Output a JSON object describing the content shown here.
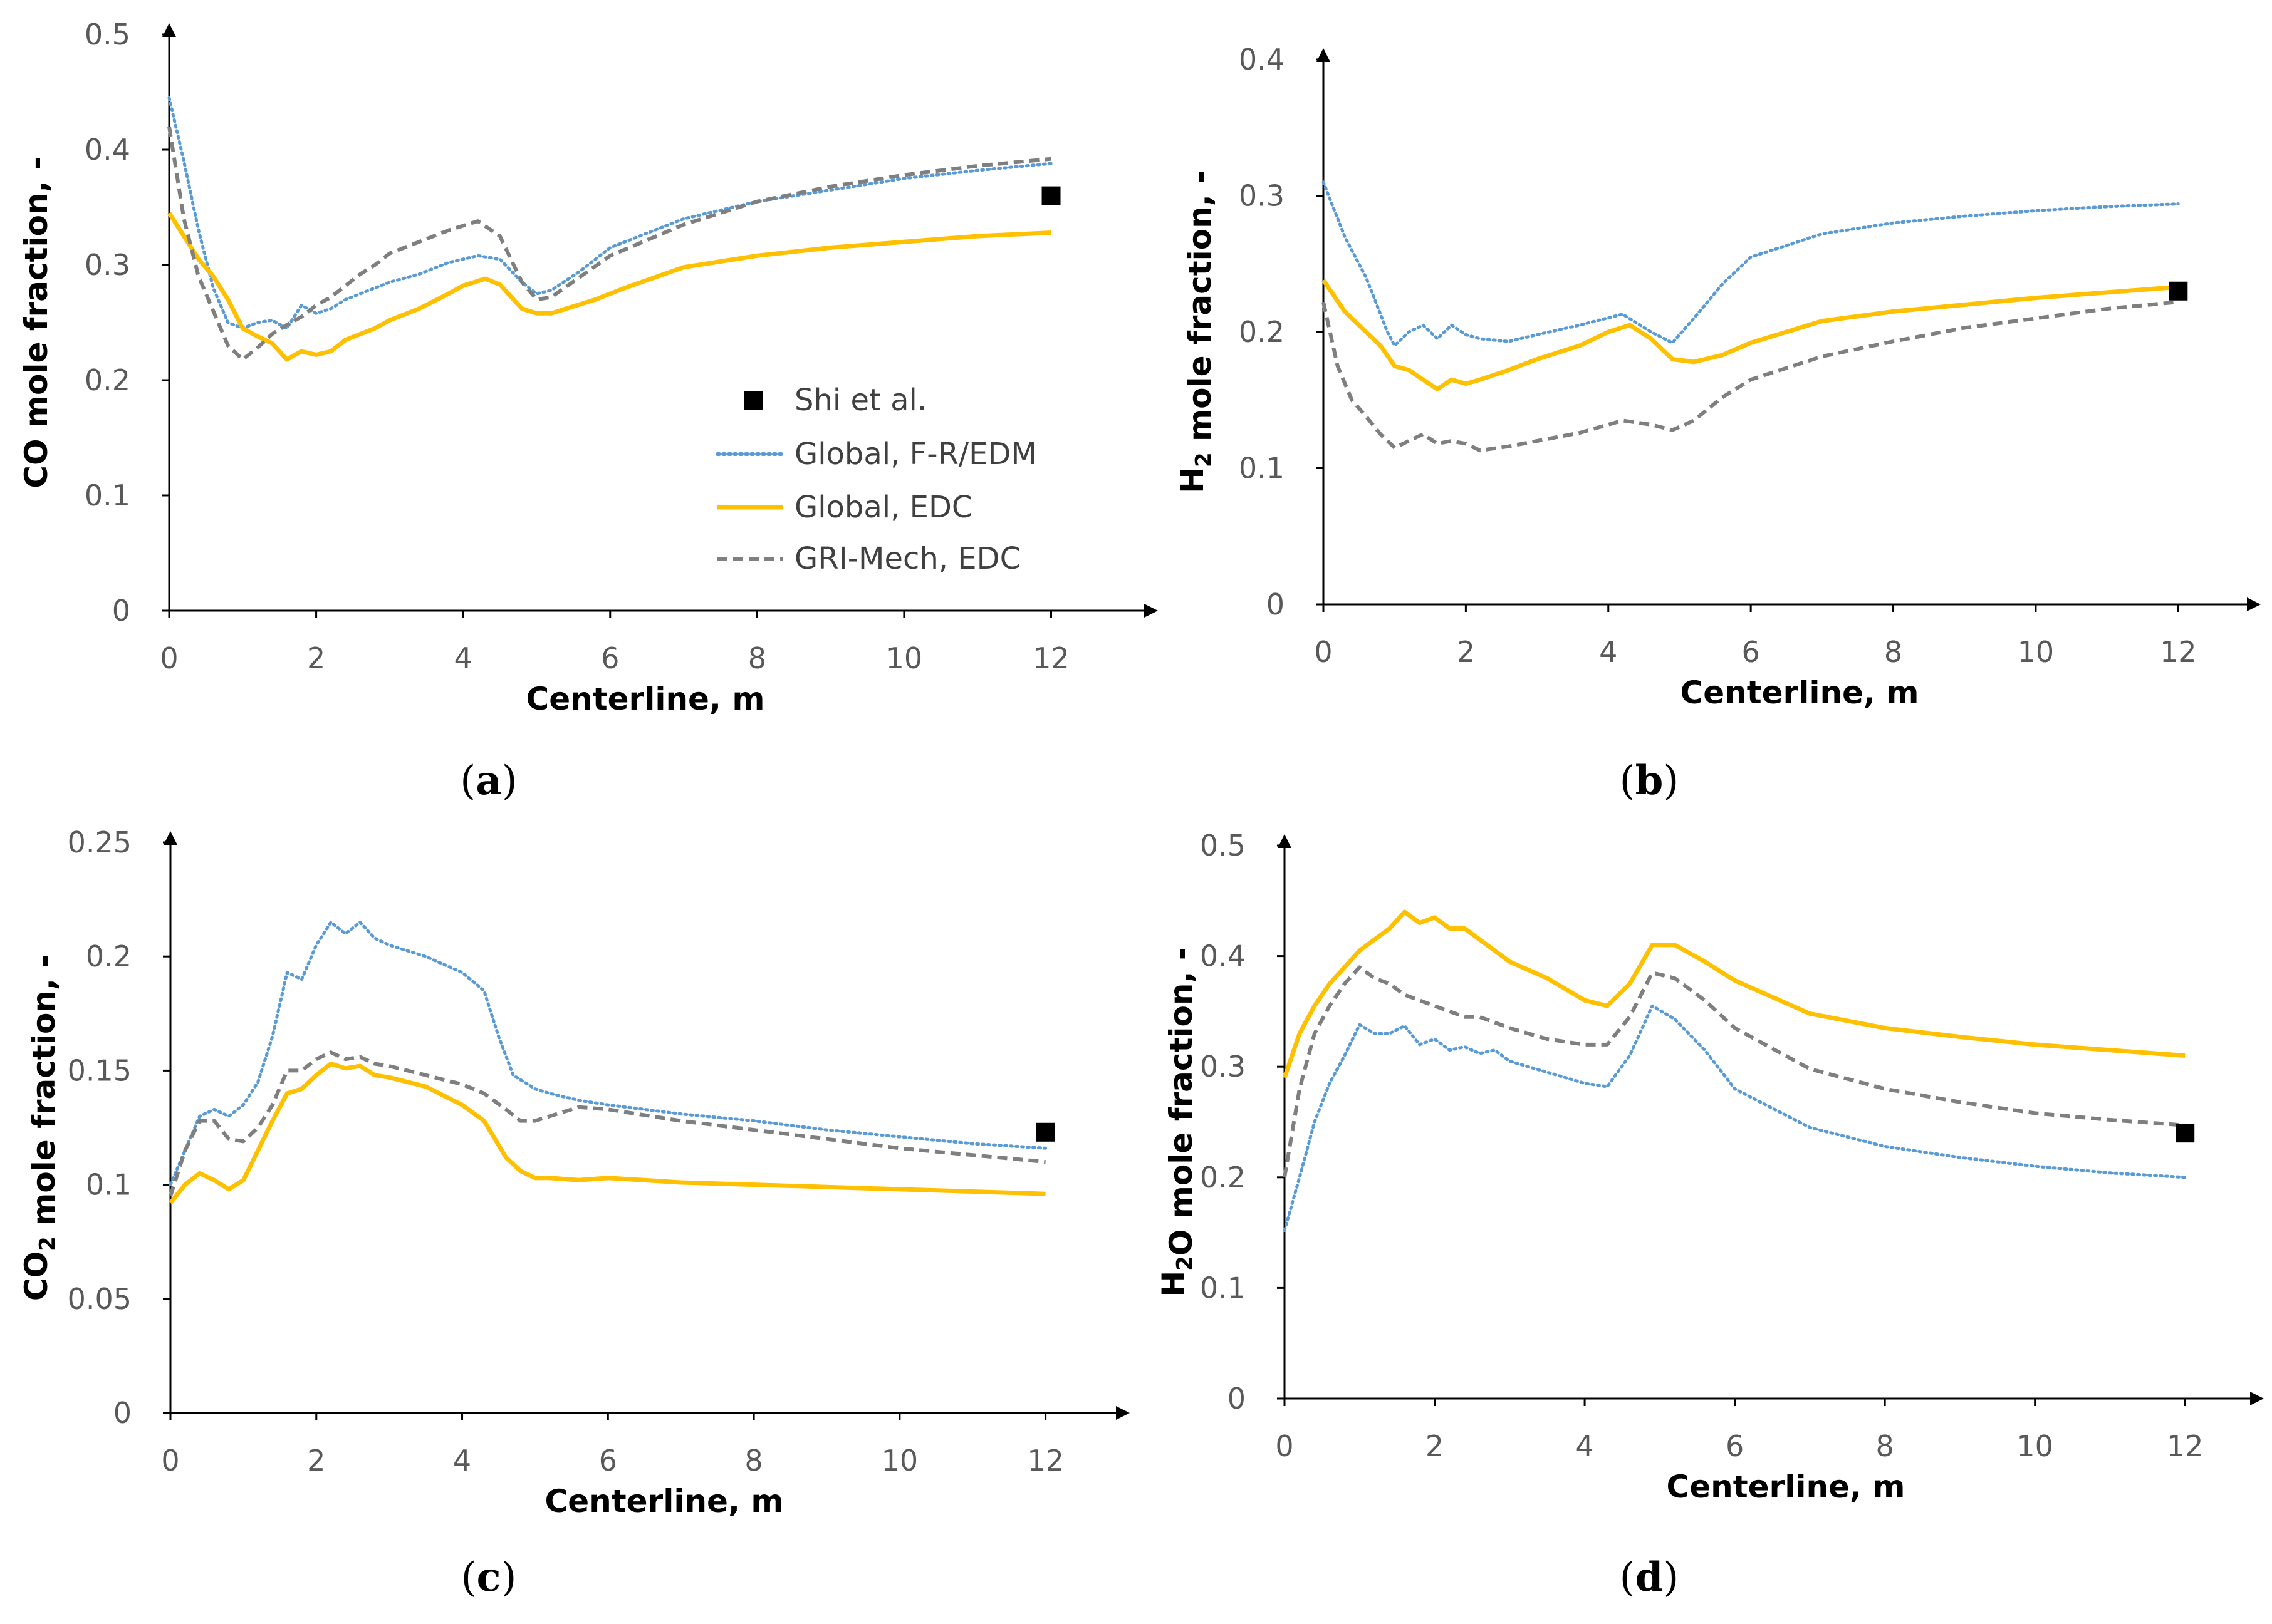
{
  "colors": {
    "ref": "#000000",
    "frEdm": "#5B9BD5",
    "globalEdc": "#FFC000",
    "griEdc": "#7F7F7F",
    "axis": "#000000",
    "tickText": "#595959"
  },
  "legend": {
    "items": [
      {
        "label": "Shi et al.",
        "series": "ref"
      },
      {
        "label": "Global, F-R/EDM",
        "series": "frEdm"
      },
      {
        "label": "Global, EDC",
        "series": "globalEdc"
      },
      {
        "label": "GRI-Mech, EDC",
        "series": "griEdc"
      }
    ]
  },
  "chart_data": [
    {
      "id": "a",
      "type": "line",
      "tag": "a",
      "xlabel": "Centerline, m",
      "ylabel": "CO mole fraction, -",
      "ylabel_parts": [
        {
          "t": "CO mole fraction, -"
        }
      ],
      "xlim": [
        0,
        13.3
      ],
      "ylim": [
        0,
        0.5
      ],
      "xticks": [
        0,
        2,
        4,
        6,
        8,
        10,
        12
      ],
      "yticks": [
        0,
        0.1,
        0.2,
        0.3,
        0.4,
        0.5
      ],
      "yticklabels": [
        "0",
        "0.1",
        "0.2",
        "0.3",
        "0.4",
        "0.5"
      ],
      "legend": "center-right",
      "series": [
        {
          "key": "frEdm",
          "name": "Global, F-R/EDM",
          "x": [
            0,
            0.2,
            0.4,
            0.6,
            0.8,
            1.0,
            1.2,
            1.4,
            1.6,
            1.8,
            2.0,
            2.2,
            2.4,
            2.6,
            2.8,
            3.0,
            3.4,
            3.8,
            4.2,
            4.5,
            4.8,
            5.0,
            5.2,
            5.6,
            6.0,
            7.0,
            8.0,
            9.0,
            10.0,
            11.0,
            12.0
          ],
          "y": [
            0.445,
            0.39,
            0.33,
            0.28,
            0.25,
            0.245,
            0.25,
            0.252,
            0.245,
            0.265,
            0.258,
            0.262,
            0.27,
            0.275,
            0.28,
            0.285,
            0.292,
            0.302,
            0.308,
            0.305,
            0.285,
            0.275,
            0.278,
            0.295,
            0.315,
            0.34,
            0.355,
            0.365,
            0.375,
            0.382,
            0.388
          ]
        },
        {
          "key": "globalEdc",
          "name": "Global, EDC",
          "x": [
            0,
            0.2,
            0.4,
            0.6,
            0.8,
            1.0,
            1.2,
            1.4,
            1.6,
            1.8,
            2.0,
            2.2,
            2.4,
            2.6,
            2.8,
            3.0,
            3.4,
            3.8,
            4.0,
            4.3,
            4.5,
            4.8,
            5.0,
            5.2,
            5.4,
            5.8,
            6.2,
            7.0,
            8.0,
            9.0,
            10.0,
            11.0,
            12.0
          ],
          "y": [
            0.345,
            0.325,
            0.305,
            0.29,
            0.27,
            0.245,
            0.238,
            0.232,
            0.218,
            0.225,
            0.222,
            0.225,
            0.235,
            0.24,
            0.245,
            0.252,
            0.262,
            0.275,
            0.282,
            0.288,
            0.283,
            0.262,
            0.258,
            0.258,
            0.262,
            0.27,
            0.28,
            0.298,
            0.308,
            0.315,
            0.32,
            0.325,
            0.328
          ]
        },
        {
          "key": "griEdc",
          "name": "GRI-Mech, EDC",
          "x": [
            0,
            0.2,
            0.4,
            0.6,
            0.8,
            1.0,
            1.2,
            1.4,
            1.6,
            1.8,
            2.0,
            2.2,
            2.4,
            2.6,
            2.8,
            3.0,
            3.4,
            3.8,
            4.2,
            4.5,
            4.8,
            5.0,
            5.2,
            5.6,
            6.0,
            7.0,
            8.0,
            9.0,
            10.0,
            11.0,
            12.0
          ],
          "y": [
            0.42,
            0.34,
            0.29,
            0.26,
            0.23,
            0.218,
            0.228,
            0.24,
            0.248,
            0.255,
            0.265,
            0.272,
            0.282,
            0.292,
            0.3,
            0.31,
            0.32,
            0.33,
            0.338,
            0.325,
            0.285,
            0.27,
            0.272,
            0.29,
            0.308,
            0.335,
            0.355,
            0.368,
            0.378,
            0.386,
            0.392
          ]
        },
        {
          "key": "ref",
          "name": "Shi et al.",
          "x": [
            12.0
          ],
          "y": [
            0.36
          ]
        }
      ]
    },
    {
      "id": "b",
      "type": "line",
      "tag": "b",
      "xlabel": "Centerline, m",
      "ylabel": "H2 mole fraction, -",
      "ylabel_parts": [
        {
          "t": "H"
        },
        {
          "t": "2",
          "sub": true
        },
        {
          "t": " mole fraction, -"
        }
      ],
      "xlim": [
        0,
        13.0
      ],
      "ylim": [
        0,
        0.4
      ],
      "xticks": [
        0,
        2,
        4,
        6,
        8,
        10,
        12
      ],
      "yticks": [
        0,
        0.1,
        0.2,
        0.3,
        0.4
      ],
      "yticklabels": [
        "0",
        "0.1",
        "0.2",
        "0.3",
        "0.4"
      ],
      "series": [
        {
          "key": "frEdm",
          "name": "Global, F-R/EDM",
          "x": [
            0,
            0.3,
            0.6,
            0.9,
            1.0,
            1.2,
            1.4,
            1.6,
            1.8,
            2.0,
            2.2,
            2.6,
            3.0,
            3.6,
            4.2,
            4.6,
            4.9,
            5.2,
            5.6,
            6.0,
            7.0,
            8.0,
            9.0,
            10.0,
            11.0,
            12.0
          ],
          "y": [
            0.31,
            0.27,
            0.24,
            0.2,
            0.19,
            0.2,
            0.205,
            0.195,
            0.205,
            0.198,
            0.195,
            0.193,
            0.198,
            0.205,
            0.213,
            0.2,
            0.192,
            0.21,
            0.235,
            0.255,
            0.272,
            0.28,
            0.285,
            0.289,
            0.292,
            0.294
          ]
        },
        {
          "key": "globalEdc",
          "name": "Global, EDC",
          "x": [
            0,
            0.3,
            0.6,
            0.8,
            1.0,
            1.2,
            1.4,
            1.6,
            1.8,
            2.0,
            2.2,
            2.6,
            3.0,
            3.6,
            4.0,
            4.3,
            4.6,
            4.9,
            5.2,
            5.6,
            6.0,
            7.0,
            8.0,
            9.0,
            10.0,
            11.0,
            12.0
          ],
          "y": [
            0.238,
            0.215,
            0.2,
            0.19,
            0.175,
            0.172,
            0.165,
            0.158,
            0.165,
            0.162,
            0.165,
            0.172,
            0.18,
            0.19,
            0.2,
            0.205,
            0.195,
            0.18,
            0.178,
            0.183,
            0.192,
            0.208,
            0.215,
            0.22,
            0.225,
            0.229,
            0.233
          ]
        },
        {
          "key": "griEdc",
          "name": "GRI-Mech, EDC",
          "x": [
            0,
            0.2,
            0.4,
            0.6,
            0.8,
            1.0,
            1.2,
            1.4,
            1.6,
            1.8,
            2.0,
            2.2,
            2.6,
            3.0,
            3.6,
            4.2,
            4.6,
            4.9,
            5.2,
            5.6,
            6.0,
            7.0,
            8.0,
            9.0,
            10.0,
            11.0,
            12.0
          ],
          "y": [
            0.222,
            0.175,
            0.15,
            0.138,
            0.125,
            0.115,
            0.12,
            0.125,
            0.118,
            0.12,
            0.118,
            0.113,
            0.116,
            0.12,
            0.126,
            0.135,
            0.132,
            0.128,
            0.135,
            0.152,
            0.165,
            0.182,
            0.193,
            0.203,
            0.21,
            0.217,
            0.222
          ]
        },
        {
          "key": "ref",
          "name": "Shi et al.",
          "x": [
            12.0
          ],
          "y": [
            0.23
          ]
        }
      ]
    },
    {
      "id": "c",
      "type": "line",
      "tag": "c",
      "xlabel": "Centerline, m",
      "ylabel": "CO2 mole fraction, -",
      "ylabel_parts": [
        {
          "t": "CO"
        },
        {
          "t": "2",
          "sub": true
        },
        {
          "t": " mole fraction, -"
        }
      ],
      "xlim": [
        0,
        13.0
      ],
      "ylim": [
        0,
        0.25
      ],
      "xticks": [
        0,
        2,
        4,
        6,
        8,
        10,
        12
      ],
      "yticks": [
        0,
        0.05,
        0.1,
        0.15,
        0.2,
        0.25
      ],
      "yticklabels": [
        "0",
        "0.05",
        "0.1",
        "0.15",
        "0.2",
        "0.25"
      ],
      "series": [
        {
          "key": "frEdm",
          "name": "Global, F-R/EDM",
          "x": [
            0,
            0.2,
            0.4,
            0.6,
            0.8,
            1.0,
            1.2,
            1.4,
            1.6,
            1.8,
            2.0,
            2.2,
            2.4,
            2.6,
            2.8,
            3.0,
            3.5,
            4.0,
            4.3,
            4.5,
            4.7,
            5.0,
            5.2,
            5.6,
            6.0,
            7.0,
            8.0,
            9.0,
            10.0,
            11.0,
            12.0
          ],
          "y": [
            0.1,
            0.115,
            0.13,
            0.133,
            0.13,
            0.135,
            0.145,
            0.165,
            0.193,
            0.19,
            0.205,
            0.215,
            0.21,
            0.215,
            0.208,
            0.205,
            0.2,
            0.193,
            0.185,
            0.165,
            0.148,
            0.142,
            0.14,
            0.137,
            0.135,
            0.131,
            0.128,
            0.124,
            0.121,
            0.118,
            0.116
          ]
        },
        {
          "key": "globalEdc",
          "name": "Global, EDC",
          "x": [
            0,
            0.2,
            0.4,
            0.6,
            0.8,
            1.0,
            1.2,
            1.4,
            1.6,
            1.8,
            2.0,
            2.2,
            2.4,
            2.6,
            2.8,
            3.0,
            3.5,
            4.0,
            4.3,
            4.6,
            4.8,
            5.0,
            5.2,
            5.6,
            6.0,
            7.0,
            8.0,
            9.0,
            10.0,
            11.0,
            12.0
          ],
          "y": [
            0.092,
            0.1,
            0.105,
            0.102,
            0.098,
            0.102,
            0.115,
            0.128,
            0.14,
            0.142,
            0.148,
            0.153,
            0.151,
            0.152,
            0.148,
            0.147,
            0.143,
            0.135,
            0.128,
            0.112,
            0.106,
            0.103,
            0.103,
            0.102,
            0.103,
            0.101,
            0.1,
            0.099,
            0.098,
            0.097,
            0.096
          ]
        },
        {
          "key": "griEdc",
          "name": "GRI-Mech, EDC",
          "x": [
            0,
            0.2,
            0.4,
            0.6,
            0.8,
            1.0,
            1.2,
            1.4,
            1.6,
            1.8,
            2.0,
            2.2,
            2.4,
            2.6,
            2.8,
            3.0,
            3.5,
            4.0,
            4.3,
            4.6,
            4.8,
            5.0,
            5.2,
            5.6,
            6.0,
            7.0,
            8.0,
            9.0,
            10.0,
            11.0,
            12.0
          ],
          "y": [
            0.095,
            0.115,
            0.128,
            0.128,
            0.12,
            0.119,
            0.125,
            0.135,
            0.15,
            0.15,
            0.155,
            0.158,
            0.155,
            0.156,
            0.153,
            0.152,
            0.148,
            0.144,
            0.14,
            0.133,
            0.128,
            0.128,
            0.13,
            0.134,
            0.133,
            0.128,
            0.124,
            0.12,
            0.116,
            0.113,
            0.11
          ]
        },
        {
          "key": "ref",
          "name": "Shi et al.",
          "x": [
            12.0
          ],
          "y": [
            0.123
          ]
        }
      ]
    },
    {
      "id": "d",
      "type": "line",
      "tag": "d",
      "xlabel": "Centerline, m",
      "ylabel": "H2O mole fraction, -",
      "ylabel_parts": [
        {
          "t": "H"
        },
        {
          "t": "2",
          "sub": true
        },
        {
          "t": "O mole fraction, -"
        }
      ],
      "xlim": [
        0,
        12.9
      ],
      "ylim": [
        0,
        0.5
      ],
      "xticks": [
        0,
        2,
        4,
        6,
        8,
        10,
        12
      ],
      "yticks": [
        0,
        0.1,
        0.2,
        0.3,
        0.4,
        0.5
      ],
      "yticklabels": [
        "0",
        "0.1",
        "0.2",
        "0.3",
        "0.4",
        "0.5"
      ],
      "series": [
        {
          "key": "frEdm",
          "name": "Global, F-R/EDM",
          "x": [
            0,
            0.2,
            0.4,
            0.6,
            0.8,
            1.0,
            1.2,
            1.4,
            1.6,
            1.8,
            2.0,
            2.2,
            2.4,
            2.6,
            2.8,
            3.0,
            3.5,
            4.0,
            4.3,
            4.6,
            4.9,
            5.2,
            5.6,
            6.0,
            7.0,
            8.0,
            9.0,
            10.0,
            11.0,
            12.0
          ],
          "y": [
            0.152,
            0.2,
            0.25,
            0.285,
            0.31,
            0.338,
            0.33,
            0.33,
            0.337,
            0.32,
            0.325,
            0.315,
            0.318,
            0.312,
            0.315,
            0.305,
            0.295,
            0.285,
            0.282,
            0.31,
            0.355,
            0.343,
            0.315,
            0.28,
            0.245,
            0.228,
            0.218,
            0.21,
            0.204,
            0.2
          ]
        },
        {
          "key": "globalEdc",
          "name": "Global, EDC",
          "x": [
            0,
            0.2,
            0.4,
            0.6,
            0.8,
            1.0,
            1.2,
            1.4,
            1.6,
            1.8,
            2.0,
            2.2,
            2.4,
            2.6,
            2.8,
            3.0,
            3.5,
            4.0,
            4.3,
            4.6,
            4.9,
            5.2,
            5.6,
            6.0,
            7.0,
            8.0,
            9.0,
            10.0,
            11.0,
            12.0
          ],
          "y": [
            0.29,
            0.33,
            0.355,
            0.375,
            0.39,
            0.405,
            0.415,
            0.425,
            0.44,
            0.43,
            0.435,
            0.425,
            0.425,
            0.415,
            0.405,
            0.395,
            0.38,
            0.36,
            0.355,
            0.375,
            0.41,
            0.41,
            0.395,
            0.378,
            0.348,
            0.335,
            0.327,
            0.32,
            0.315,
            0.31
          ]
        },
        {
          "key": "griEdc",
          "name": "GRI-Mech, EDC",
          "x": [
            0,
            0.2,
            0.4,
            0.6,
            0.8,
            1.0,
            1.2,
            1.4,
            1.6,
            1.8,
            2.0,
            2.2,
            2.4,
            2.6,
            2.8,
            3.0,
            3.5,
            4.0,
            4.3,
            4.6,
            4.9,
            5.2,
            5.6,
            6.0,
            7.0,
            8.0,
            9.0,
            10.0,
            11.0,
            12.0
          ],
          "y": [
            0.2,
            0.28,
            0.33,
            0.355,
            0.375,
            0.39,
            0.38,
            0.375,
            0.365,
            0.36,
            0.355,
            0.35,
            0.345,
            0.345,
            0.34,
            0.335,
            0.325,
            0.32,
            0.32,
            0.345,
            0.385,
            0.38,
            0.36,
            0.335,
            0.298,
            0.28,
            0.268,
            0.258,
            0.252,
            0.247
          ]
        },
        {
          "key": "ref",
          "name": "Shi et al.",
          "x": [
            12.0
          ],
          "y": [
            0.24
          ]
        }
      ]
    }
  ]
}
